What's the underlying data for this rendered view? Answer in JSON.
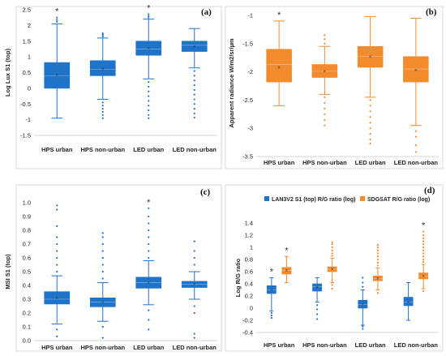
{
  "chart_data": [
    {
      "type": "box",
      "panel_label": "(a)",
      "ylabel": "Log Lux S1 (top)",
      "ylim": [
        -1.5,
        2.5
      ],
      "yticks": [
        -1.5,
        -1.0,
        -0.5,
        0.0,
        0.5,
        1.0,
        1.5,
        2.0,
        2.5
      ],
      "ytick_labels": [
        "-1.5",
        "-1",
        "-0.5",
        "0",
        "0.5",
        "1",
        "1.5",
        "2",
        "2.5"
      ],
      "categories": [
        "HPS urban",
        "HPS non-urban",
        "LED urban",
        "LED non-urban"
      ],
      "color": "#1f73c8",
      "boxes": [
        {
          "whisker_low": -0.95,
          "q1": 0.0,
          "median": 0.4,
          "q3": 0.82,
          "whisker_high": 2.05,
          "mean": 0.42,
          "outliers_low": [],
          "outliers_high": [
            2.12,
            2.18,
            2.25
          ],
          "star": true
        },
        {
          "whisker_low": -0.35,
          "q1": 0.4,
          "median": 0.6,
          "q3": 0.88,
          "whisker_high": 1.6,
          "mean": 0.62,
          "outliers_low": [
            -0.45,
            -0.55,
            -0.65,
            -0.75,
            -0.85,
            -0.95
          ],
          "outliers_high": [
            1.65,
            1.7,
            1.75
          ],
          "star": false
        },
        {
          "whisker_low": 0.3,
          "q1": 1.05,
          "median": 1.25,
          "q3": 1.5,
          "whisker_high": 2.2,
          "mean": 1.27,
          "outliers_low": [
            0.2,
            0.05,
            -0.1,
            -0.25,
            -0.4,
            -0.55,
            -0.7,
            -0.85,
            -0.95
          ],
          "outliers_high": [
            2.25,
            2.3,
            2.36
          ],
          "star": true
        },
        {
          "whisker_low": 0.65,
          "q1": 1.17,
          "median": 1.37,
          "q3": 1.5,
          "whisker_high": 1.9,
          "mean": 1.32,
          "outliers_low": [
            0.55,
            0.4,
            0.25,
            0.1,
            -0.05,
            -0.2,
            -0.35,
            -0.5,
            -0.65,
            -0.8,
            -0.93
          ],
          "outliers_high": [],
          "star": false
        }
      ]
    },
    {
      "type": "box",
      "panel_label": "(b)",
      "ylabel": "Apparent radiance W/m2/sr/µm",
      "ylim": [
        -3.5,
        -0.9
      ],
      "yticks": [
        -3.5,
        -3.0,
        -2.5,
        -2.0,
        -1.5,
        -1.0
      ],
      "ytick_labels": [
        "-3.5",
        "-3",
        "-2.5",
        "-2",
        "-1.5",
        "-1"
      ],
      "categories": [
        "HPS urban",
        "HPS non-urban",
        "LED urban",
        "LED non-urban"
      ],
      "color": "#f28a2e",
      "boxes": [
        {
          "whisker_low": -2.6,
          "q1": -2.18,
          "median": -1.87,
          "q3": -1.6,
          "whisker_high": -1.1,
          "mean": -1.93,
          "outliers_low": [],
          "outliers_high": [],
          "star": true
        },
        {
          "whisker_low": -2.4,
          "q1": -2.1,
          "median": -1.99,
          "q3": -1.87,
          "whisker_high": -1.55,
          "mean": -1.99,
          "outliers_low": [
            -2.45,
            -2.55,
            -2.65,
            -2.75,
            -2.85,
            -2.95
          ],
          "outliers_high": [
            -1.5,
            -1.42,
            -1.35
          ],
          "star": false
        },
        {
          "whisker_low": -2.45,
          "q1": -1.92,
          "median": -1.73,
          "q3": -1.55,
          "whisker_high": -1.02,
          "mean": -1.73,
          "outliers_low": [
            -2.5,
            -2.6,
            -2.7,
            -2.8,
            -2.9,
            -3.0,
            -3.1,
            -3.2,
            -3.27
          ],
          "outliers_high": [],
          "star": false
        },
        {
          "whisker_low": -2.95,
          "q1": -2.18,
          "median": -1.95,
          "q3": -1.73,
          "whisker_high": -1.05,
          "mean": -1.97,
          "outliers_low": [
            -3.05,
            -3.15,
            -3.3,
            -3.42
          ],
          "outliers_high": [],
          "star": false
        }
      ]
    },
    {
      "type": "box",
      "panel_label": "(c)",
      "ylabel": "MSI S1 (top)",
      "ylim": [
        0.0,
        1.0
      ],
      "yticks": [
        0.0,
        0.1,
        0.2,
        0.3,
        0.4,
        0.5,
        0.6,
        0.7,
        0.8,
        0.9,
        1.0
      ],
      "ytick_labels": [
        "0.0",
        "0.1",
        "0.2",
        "0.3",
        "0.4",
        "0.5",
        "0.6",
        "0.7",
        "0.8",
        "0.9",
        "1.0"
      ],
      "categories": [
        "HPS urban",
        "HPS non-urban",
        "LED urban",
        "LED non-urban"
      ],
      "color": "#1f73c8",
      "boxes": [
        {
          "whisker_low": 0.12,
          "q1": 0.265,
          "median": 0.3,
          "q3": 0.355,
          "whisker_high": 0.47,
          "mean": 0.31,
          "outliers_low": [
            0.08,
            0.03
          ],
          "outliers_high": [
            0.5,
            0.55,
            0.6,
            0.65,
            0.7,
            0.75,
            0.83,
            0.95,
            0.98
          ],
          "star": false
        },
        {
          "whisker_low": 0.14,
          "q1": 0.245,
          "median": 0.28,
          "q3": 0.31,
          "whisker_high": 0.42,
          "mean": 0.28,
          "outliers_low": [
            0.1,
            0.02
          ],
          "outliers_high": [
            0.45,
            0.5,
            0.55,
            0.6,
            0.65,
            0.7,
            0.75,
            0.78
          ],
          "star": false
        },
        {
          "whisker_low": 0.26,
          "q1": 0.38,
          "median": 0.42,
          "q3": 0.46,
          "whisker_high": 0.58,
          "mean": 0.42,
          "outliers_low": [
            0.22,
            0.15,
            0.08
          ],
          "outliers_high": [
            0.6,
            0.65,
            0.7,
            0.75,
            0.8,
            0.85,
            0.9,
            0.96
          ],
          "star": true
        },
        {
          "whisker_low": 0.3,
          "q1": 0.385,
          "median": 0.41,
          "q3": 0.43,
          "whisker_high": 0.5,
          "mean": 0.41,
          "outliers_low": [
            0.25,
            0.2,
            0.05,
            0.02
          ],
          "outliers_high": [
            0.55,
            0.6,
            0.65,
            0.72
          ],
          "star": false
        }
      ]
    },
    {
      "type": "box",
      "panel_label": "(d)",
      "ylabel": "Log R/G ratio",
      "ylim": [
        -0.4,
        1.4
      ],
      "yticks": [
        -0.4,
        -0.2,
        0.0,
        0.2,
        0.4,
        0.6,
        0.8,
        1.0,
        1.2,
        1.4
      ],
      "ytick_labels": [
        "-0.4",
        "-0.2",
        "0",
        "0.2",
        "0.4",
        "0.6",
        "0.8",
        "1",
        "1.2",
        "1.4"
      ],
      "categories": [
        "HPS urban",
        "HPS non-urban",
        "LED urban",
        "LED non-urban"
      ],
      "legend": {
        "position": "top",
        "items": [
          {
            "label": "LAN3V2 S1 (top) R/G ratio (log)",
            "color": "#1f73c8"
          },
          {
            "label": "SDGSAT R/G ratio (log)",
            "color": "#f28a2e"
          }
        ]
      },
      "series": [
        {
          "name": "LAN3V2 S1 (top) R/G ratio (log)",
          "color": "#1f73c8",
          "boxes": [
            {
              "whisker_low": -0.05,
              "q1": 0.24,
              "median": 0.3,
              "q3": 0.37,
              "whisker_high": 0.5,
              "mean": 0.3,
              "outliers_low": [
                -0.08,
                -0.12,
                -0.16
              ],
              "outliers_high": [],
              "star": true
            },
            {
              "whisker_low": 0.1,
              "q1": 0.28,
              "median": 0.35,
              "q3": 0.4,
              "whisker_high": 0.5,
              "mean": 0.34,
              "outliers_low": [
                0.05,
                -0.02,
                -0.1,
                -0.18
              ],
              "outliers_high": [],
              "star": false
            },
            {
              "whisker_low": -0.28,
              "q1": 0.0,
              "median": 0.06,
              "q3": 0.13,
              "whisker_high": 0.3,
              "mean": 0.06,
              "outliers_low": [
                -0.3,
                -0.34
              ],
              "outliers_high": [
                0.35,
                0.42,
                0.5
              ],
              "star": false
            },
            {
              "whisker_low": -0.2,
              "q1": 0.04,
              "median": 0.1,
              "q3": 0.18,
              "whisker_high": 0.42,
              "mean": 0.1,
              "outliers_low": [],
              "outliers_high": [],
              "star": false
            }
          ]
        },
        {
          "name": "SDGSAT R/G ratio (log)",
          "color": "#f28a2e",
          "boxes": [
            {
              "whisker_low": 0.42,
              "q1": 0.56,
              "median": 0.62,
              "q3": 0.67,
              "whisker_high": 0.85,
              "mean": 0.62,
              "outliers_low": [],
              "outliers_high": [],
              "star": true
            },
            {
              "whisker_low": 0.42,
              "q1": 0.6,
              "median": 0.64,
              "q3": 0.68,
              "whisker_high": 0.82,
              "mean": 0.64,
              "outliers_low": [
                0.38,
                0.32
              ],
              "outliers_high": [
                0.86,
                0.9,
                0.95,
                1.0,
                1.05,
                1.08
              ],
              "star": false
            },
            {
              "whisker_low": 0.3,
              "q1": 0.45,
              "median": 0.49,
              "q3": 0.53,
              "whisker_high": 0.66,
              "mean": 0.49,
              "outliers_low": [
                0.25
              ],
              "outliers_high": [
                0.7,
                0.75,
                0.8,
                0.85,
                0.9,
                0.95,
                1.0,
                1.04
              ],
              "star": false
            },
            {
              "whisker_low": 0.32,
              "q1": 0.48,
              "median": 0.53,
              "q3": 0.58,
              "whisker_high": 0.72,
              "mean": 0.53,
              "outliers_low": [
                0.28
              ],
              "outliers_high": [
                0.76,
                0.8,
                0.85,
                0.9,
                0.95,
                1.0,
                1.05,
                1.1,
                1.15,
                1.2,
                1.26
              ],
              "star": true
            }
          ]
        }
      ]
    }
  ]
}
